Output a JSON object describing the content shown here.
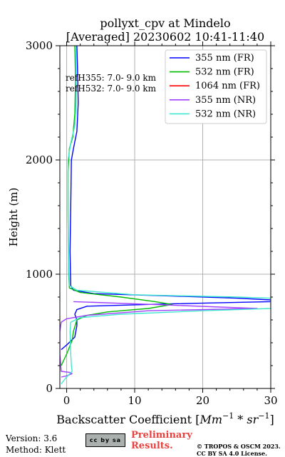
{
  "chart_data": {
    "type": "line",
    "title": "pollyxt_cpv at Mindelo",
    "subtitle": "[Averaged] 20230602 10:41-11:40",
    "xlabel": "Backscatter Coefficient [$Mm^{-1}*sr^{-1}$]",
    "xlabel_parts": {
      "prefix": "Backscatter Coefficient [",
      "base1": "Mm",
      "sup1": "−1",
      "mid": " * ",
      "base2": "sr",
      "sup2": "−1",
      "suffix": "]"
    },
    "ylabel": "Height (m)",
    "xlim": [
      -1,
      30
    ],
    "ylim": [
      0,
      3000
    ],
    "xticks": [
      0,
      10,
      20,
      30
    ],
    "yticks": [
      0,
      1000,
      2000,
      3000
    ],
    "grid": true,
    "legend_position": "top-right",
    "annotations": [
      "refH355:  7.0- 9.0 km",
      "refH532:  7.0- 9.0 km"
    ],
    "series": [
      {
        "name": "355 nm (FR)",
        "color": "#0000ff",
        "points": [
          [
            1.5,
            3000
          ],
          [
            1.6,
            2800
          ],
          [
            1.7,
            2500
          ],
          [
            1.5,
            2250
          ],
          [
            1.0,
            2100
          ],
          [
            0.7,
            2000
          ],
          [
            0.6,
            1600
          ],
          [
            0.5,
            1200
          ],
          [
            0.6,
            900
          ],
          [
            1.0,
            860
          ],
          [
            4.0,
            830
          ],
          [
            15.0,
            810
          ],
          [
            25.0,
            790
          ],
          [
            30.0,
            775
          ],
          [
            30.0,
            760
          ],
          [
            15.0,
            740
          ],
          [
            3.0,
            720
          ],
          [
            1.5,
            690
          ],
          [
            1.2,
            650
          ],
          [
            1.5,
            600
          ],
          [
            1.5,
            550
          ],
          [
            1.2,
            450
          ],
          [
            0.0,
            380
          ],
          [
            -0.8,
            340
          ]
        ]
      },
      {
        "name": "532 nm (FR)",
        "color": "#00bb00",
        "points": [
          [
            1.2,
            3000
          ],
          [
            1.3,
            2700
          ],
          [
            1.2,
            2400
          ],
          [
            0.9,
            2200
          ],
          [
            0.4,
            2100
          ],
          [
            0.2,
            1900
          ],
          [
            0.2,
            1500
          ],
          [
            0.3,
            1000
          ],
          [
            0.4,
            880
          ],
          [
            2.0,
            840
          ],
          [
            8.0,
            800
          ],
          [
            13.0,
            760
          ],
          [
            15.5,
            735
          ],
          [
            12.0,
            700
          ],
          [
            6.0,
            670
          ],
          [
            3.0,
            640
          ],
          [
            1.5,
            600
          ],
          [
            1.0,
            500
          ],
          [
            0.8,
            420
          ],
          [
            0.0,
            300
          ],
          [
            -0.8,
            200
          ]
        ]
      },
      {
        "name": "1064 nm (FR)",
        "color": "#ff0000",
        "points": []
      },
      {
        "name": "355 nm (NR)",
        "color": "#a040ff",
        "points": [
          [
            1.0,
            760
          ],
          [
            15.0,
            730
          ],
          [
            28.0,
            700
          ],
          [
            12.0,
            680
          ],
          [
            3.0,
            640
          ],
          [
            0.0,
            610
          ],
          [
            -0.8,
            580
          ],
          [
            -1.0,
            500
          ],
          [
            -1.0,
            300
          ],
          [
            -0.8,
            150
          ],
          [
            0.5,
            140
          ],
          [
            0.8,
            130
          ],
          [
            0.0,
            110
          ],
          [
            -0.8,
            100
          ]
        ]
      },
      {
        "name": "532 nm (NR)",
        "color": "#40e8d0",
        "points": [
          [
            1.3,
            3000
          ],
          [
            1.4,
            2800
          ],
          [
            1.4,
            2500
          ],
          [
            1.2,
            2300
          ],
          [
            0.6,
            2150
          ],
          [
            0.2,
            2000
          ],
          [
            0.2,
            1600
          ],
          [
            0.3,
            1100
          ],
          [
            0.4,
            900
          ],
          [
            1.5,
            860
          ],
          [
            10.0,
            820
          ],
          [
            25.0,
            800
          ],
          [
            30.0,
            790
          ],
          [
            30.0,
            700
          ],
          [
            20.0,
            680
          ],
          [
            8.0,
            650
          ],
          [
            2.0,
            620
          ],
          [
            0.6,
            580
          ],
          [
            0.5,
            500
          ],
          [
            0.6,
            300
          ],
          [
            0.7,
            200
          ],
          [
            0.8,
            150
          ],
          [
            0.0,
            100
          ],
          [
            -0.8,
            40
          ]
        ]
      }
    ]
  },
  "footer": {
    "version": "Version: 3.6",
    "method": "Method: Klett",
    "cc_label": "cc by sa",
    "preliminary_line1": "Preliminary",
    "preliminary_line2": "Results.",
    "copyright_line1": "© TROPOS & OSCM 2023.",
    "copyright_line2": "CC BY SA 4.0 License."
  }
}
